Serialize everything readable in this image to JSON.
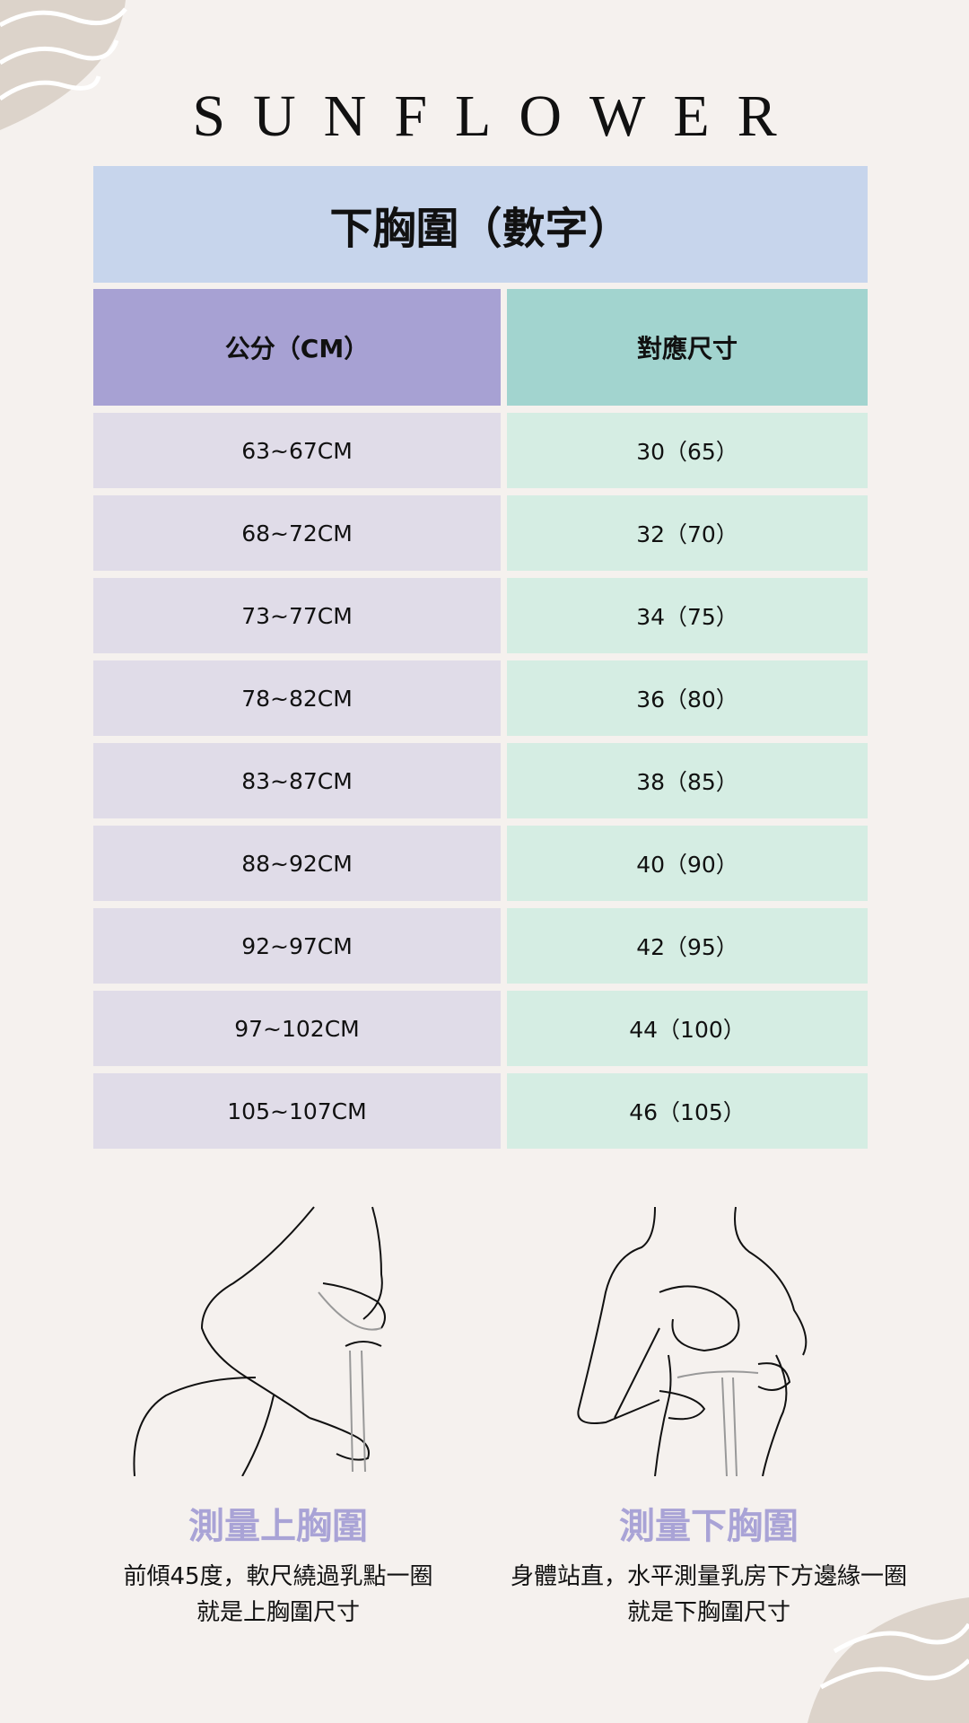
{
  "brand": "SUNFLOWER",
  "table": {
    "title": "下胸圍（數字）",
    "headers": [
      "公分（CM）",
      "對應尺寸"
    ],
    "rows": [
      [
        "63~67CM",
        "30（65）"
      ],
      [
        "68~72CM",
        "32（70）"
      ],
      [
        "73~77CM",
        "34（75）"
      ],
      [
        "78~82CM",
        "36（80）"
      ],
      [
        "83~87CM",
        "38（85）"
      ],
      [
        "88~92CM",
        "40（90）"
      ],
      [
        "92~97CM",
        "42（95）"
      ],
      [
        "97~102CM",
        "44（100）"
      ],
      [
        "105~107CM",
        "46（105）"
      ]
    ]
  },
  "measure": [
    {
      "label": "測量上胸圍",
      "desc1": "前傾45度，軟尺繞過乳點一圈",
      "desc2": "就是上胸圍尺寸"
    },
    {
      "label": "測量下胸圍",
      "desc1": "身體站直，水平測量乳房下方邊緣一圈",
      "desc2": "就是下胸圍尺寸"
    }
  ],
  "colors": {
    "background": "#f5f1ee",
    "title": "#c7d5ec",
    "left_header": "#a7a1d3",
    "right_header": "#a2d4cf",
    "left_cell": "#e0dce8",
    "right_cell": "#d5ede3",
    "label": "#a9a3d6",
    "deco": "#dcd3ca"
  }
}
